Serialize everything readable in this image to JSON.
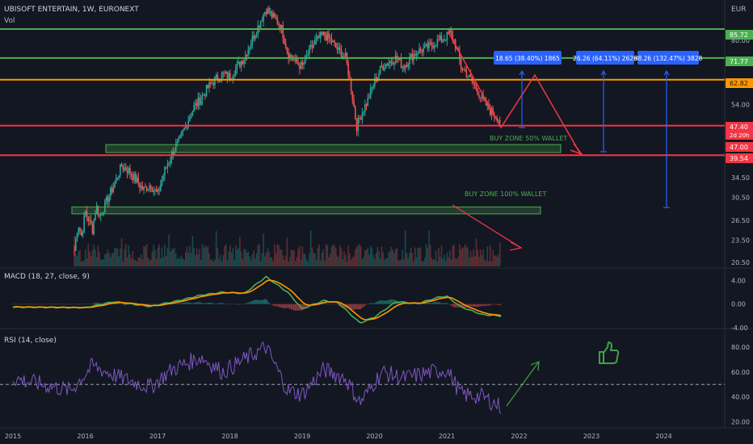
{
  "header": {
    "symbol_line": "UBISOFT ENTERTAIN, 1W, EURONEXT",
    "volume_label": "Vol",
    "currency": "EUR"
  },
  "macd_panel": {
    "label": "MACD (18, 27, close, 9)"
  },
  "rsi_panel": {
    "label": "RSI (14, close)"
  },
  "colors": {
    "background": "#131722",
    "up": "#26a69a",
    "down": "#ef5350",
    "green_level": "#4caf50",
    "orange_level": "#ff9800",
    "red_level": "#f23645",
    "projection": "#2962ff",
    "rsi": "#7e57c2",
    "macd": "#4caf50",
    "signal": "#ff9800"
  },
  "chart_data": {
    "type": "candlestick",
    "price_axis": {
      "scale": "log",
      "ticks": [
        "80.00",
        "54.00",
        "34.50",
        "30.50",
        "26.50",
        "23.50",
        "20.50"
      ],
      "range": [
        20,
        105
      ]
    },
    "x_axis": {
      "ticks": [
        "2015",
        "2016",
        "2017",
        "2018",
        "2019",
        "2020",
        "2021",
        "2022",
        "2023",
        "2024"
      ]
    },
    "price_path": [
      [
        "2015.85",
        22
      ],
      [
        "2015.9",
        26
      ],
      [
        "2015.95",
        24
      ],
      [
        "2016.0",
        28
      ],
      [
        "2016.1",
        25
      ],
      [
        "2016.15",
        29
      ],
      [
        "2016.2",
        27
      ],
      [
        "2016.3",
        30
      ],
      [
        "2016.4",
        33
      ],
      [
        "2016.5",
        37
      ],
      [
        "2016.6",
        36
      ],
      [
        "2016.7",
        34
      ],
      [
        "2016.8",
        32
      ],
      [
        "2016.9",
        33
      ],
      [
        "2017.0",
        31
      ],
      [
        "2017.1",
        36
      ],
      [
        "2017.2",
        40
      ],
      [
        "2017.3",
        43
      ],
      [
        "2017.4",
        48
      ],
      [
        "2017.5",
        53
      ],
      [
        "2017.6",
        56
      ],
      [
        "2017.7",
        60
      ],
      [
        "2017.8",
        63
      ],
      [
        "2017.9",
        65
      ],
      [
        "2018.0",
        64
      ],
      [
        "2018.1",
        68
      ],
      [
        "2018.2",
        72
      ],
      [
        "2018.3",
        80
      ],
      [
        "2018.4",
        88
      ],
      [
        "2018.5",
        97
      ],
      [
        "2018.6",
        92
      ],
      [
        "2018.7",
        88
      ],
      [
        "2018.8",
        74
      ],
      [
        "2018.9",
        70
      ],
      [
        "2019.0",
        68
      ],
      [
        "2019.1",
        75
      ],
      [
        "2019.2",
        80
      ],
      [
        "2019.3",
        83
      ],
      [
        "2019.4",
        80
      ],
      [
        "2019.5",
        75
      ],
      [
        "2019.6",
        72
      ],
      [
        "2019.7",
        56
      ],
      [
        "2019.75",
        47
      ],
      [
        "2019.8",
        50
      ],
      [
        "2019.9",
        55
      ],
      [
        "2020.0",
        62
      ],
      [
        "2020.1",
        68
      ],
      [
        "2020.2",
        70
      ],
      [
        "2020.3",
        72
      ],
      [
        "2020.4",
        68
      ],
      [
        "2020.5",
        72
      ],
      [
        "2020.6",
        75
      ],
      [
        "2020.7",
        76
      ],
      [
        "2020.8",
        78
      ],
      [
        "2020.9",
        80
      ],
      [
        "2021.0",
        82
      ],
      [
        "2021.05",
        84
      ],
      [
        "2021.1",
        80
      ],
      [
        "2021.2",
        68
      ],
      [
        "2021.3",
        64
      ],
      [
        "2021.4",
        60
      ],
      [
        "2021.5",
        55
      ],
      [
        "2021.6",
        52
      ],
      [
        "2021.7",
        50
      ],
      [
        "2021.75",
        48
      ]
    ],
    "levels": [
      {
        "value": 85.72,
        "label": "85.72",
        "color": "green"
      },
      {
        "value": 71.77,
        "label": "71.77",
        "color": "green"
      },
      {
        "value": 62.82,
        "label": "62.82",
        "color": "orange"
      },
      {
        "value": 47.4,
        "label": "47.40",
        "sublabel": "2d 20h",
        "color": "red"
      },
      {
        "value": 47.0,
        "label": "47.00",
        "color": "red"
      },
      {
        "value": 39.54,
        "label": "39.54",
        "color": "red"
      }
    ],
    "zones": [
      {
        "label": "BUY ZONE 50% WALLET",
        "from": 40.2,
        "to": 42.2
      },
      {
        "label": "BUY ZONE 100% WALLET",
        "from": 27.6,
        "to": 28.8
      }
    ],
    "projections": [
      {
        "label": "18.65 (38.40%) 1865"
      },
      {
        "label": "26.26 (64.11%) 2626"
      },
      {
        "label": "38.26 (132.47%) 3828"
      }
    ],
    "macd": {
      "ticks": [
        "4.00",
        "0.00",
        "-4.00"
      ],
      "range": [
        -4,
        5
      ]
    },
    "rsi": {
      "ticks": [
        "80.00",
        "60.00",
        "40.00",
        "20.00"
      ],
      "range": [
        15,
        95
      ],
      "midline": 50
    }
  }
}
